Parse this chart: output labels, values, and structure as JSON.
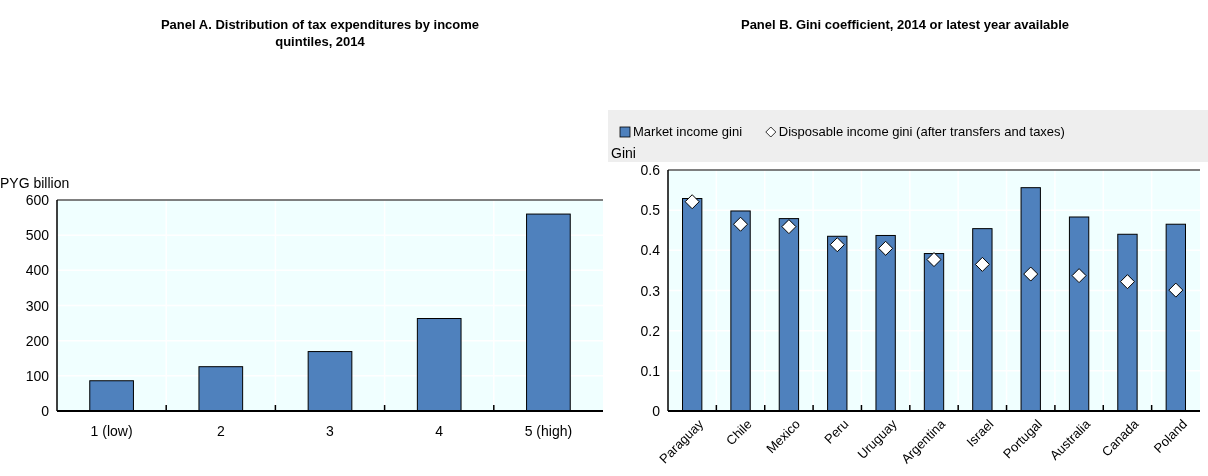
{
  "chart_data": [
    {
      "type": "bar",
      "title": "Panel A. Distribution of tax expenditures by income quintiles, 2014",
      "ylabel": "PYG billion",
      "categories": [
        "1 (low)",
        "2",
        "3",
        "4",
        "5 (high)"
      ],
      "values": [
        86,
        126,
        169,
        263,
        560
      ],
      "color": "#4f81bd",
      "ylim": [
        0,
        600
      ],
      "yticks": [
        0,
        100,
        200,
        300,
        400,
        500,
        600
      ],
      "grid": true
    },
    {
      "type": "bar",
      "title": "Panel B. Gini coefficient, 2014 or latest year available",
      "ylabel": "Gini",
      "categories": [
        "Paraguay",
        "Chile",
        "Mexico",
        "Peru",
        "Uruguay",
        "Argentina",
        "Israel",
        "Portugal",
        "Australia",
        "Canada",
        "Poland"
      ],
      "series": [
        {
          "name": "Market income gini",
          "color": "#4f81bd",
          "values": [
            0.529,
            0.498,
            0.479,
            0.435,
            0.437,
            0.392,
            0.454,
            0.556,
            0.483,
            0.44,
            0.465
          ]
        },
        {
          "type": "scatter",
          "name": "Disposable income gini (after transfers and taxes)",
          "color": "#ffffff",
          "marker": "diamond",
          "values": [
            0.521,
            0.465,
            0.459,
            0.414,
            0.405,
            0.377,
            0.365,
            0.341,
            0.337,
            0.322,
            0.301
          ]
        }
      ],
      "ylim": [
        0,
        0.6
      ],
      "yticks": [
        0,
        0.1,
        0.2,
        0.3,
        0.4,
        0.5,
        0.6
      ],
      "grid": true,
      "legend": "top"
    }
  ]
}
